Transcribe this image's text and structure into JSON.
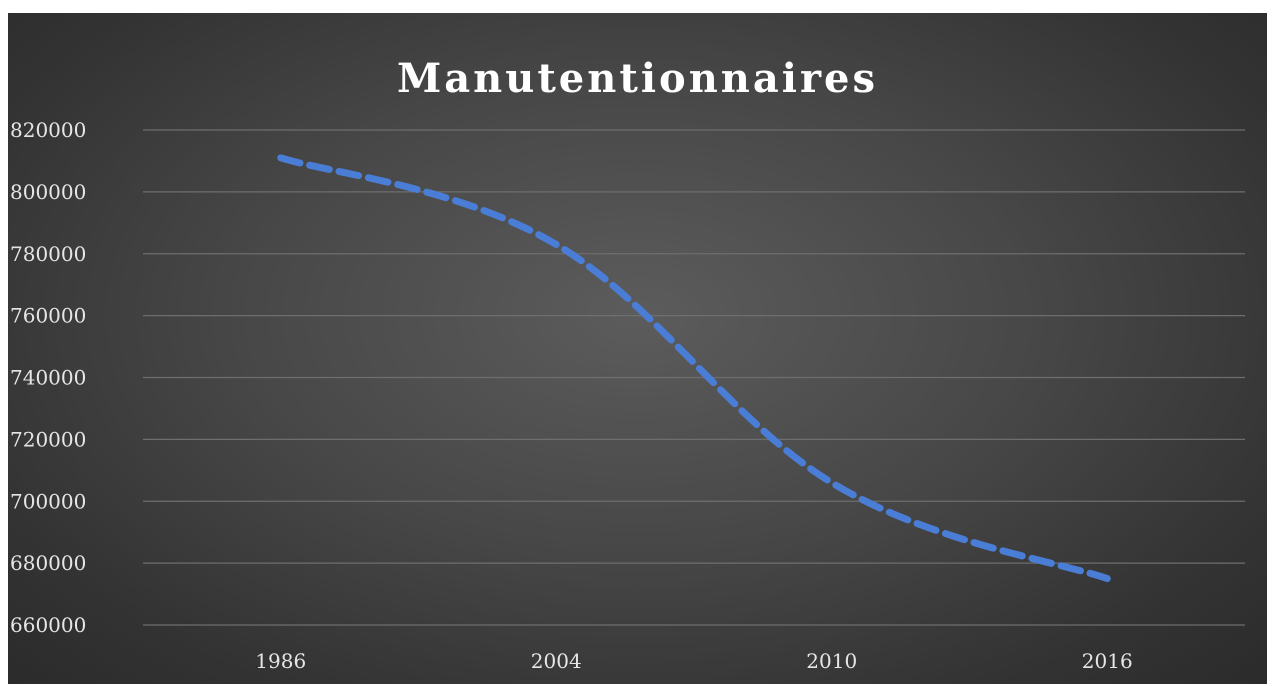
{
  "chart_data": {
    "type": "line",
    "title": "Manutentionnaires",
    "categories": [
      "1986",
      "2004",
      "2010",
      "2016"
    ],
    "series": [
      {
        "values": [
          811000,
          783000,
          706000,
          675000
        ],
        "color": "#4a7dd6",
        "style": "dashed"
      }
    ],
    "y_ticks": [
      "660000",
      "680000",
      "700000",
      "720000",
      "740000",
      "760000",
      "780000",
      "800000",
      "820000"
    ],
    "ylim": [
      660000,
      820000
    ],
    "grid": true,
    "background": "dark-gradient"
  }
}
